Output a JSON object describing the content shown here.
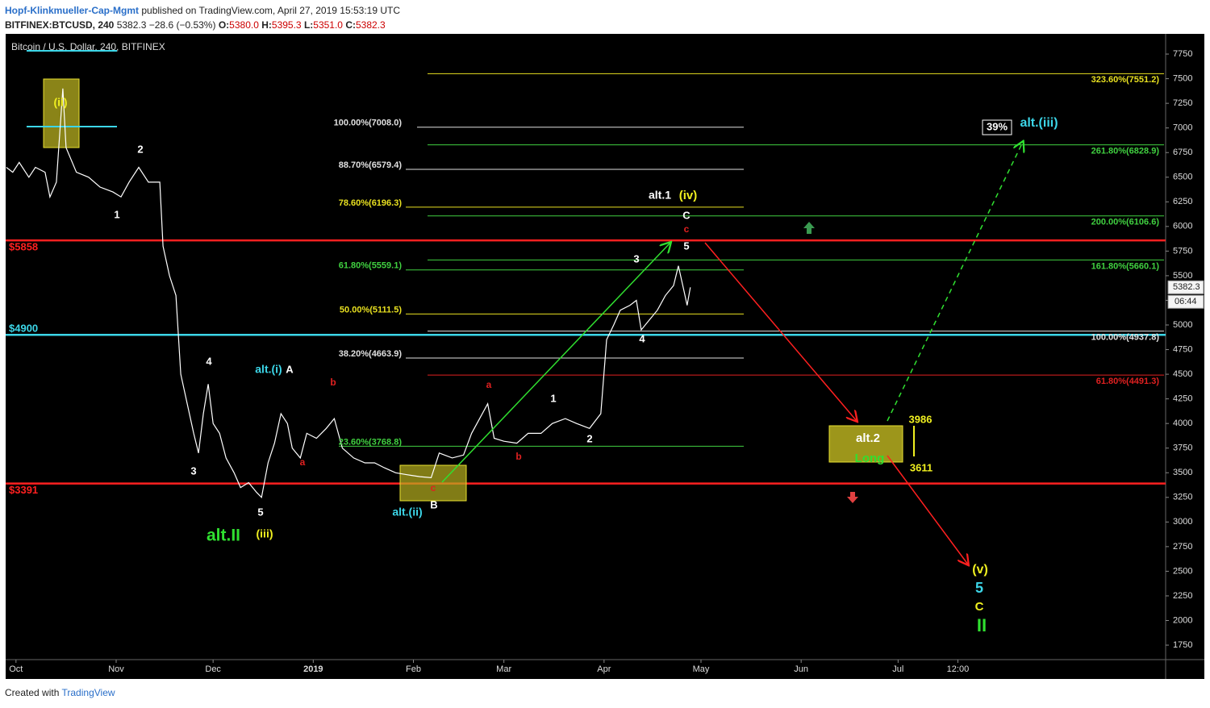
{
  "header": {
    "author": "Hopf-Klinkmueller-Cap-Mgmt",
    "published": "published on TradingView.com, April 27, 2019 15:53:19 UTC",
    "symbol": "BITFINEX:BTCUSD, 240",
    "last": "5382.3",
    "change": "−28.6 (−0.53%)",
    "o_label": "O:",
    "o": "5380.0",
    "h_label": "H:",
    "h": "5395.3",
    "l_label": "L:",
    "l": "5351.0",
    "c_label": "C:",
    "c": "5382.3"
  },
  "chart_data": {
    "type": "line",
    "title": "Bitcoin / U.S. Dollar, 240, BITFINEX",
    "series": [
      {
        "name": "BTCUSD",
        "color": "#ffffff",
        "x": [
          -3,
          -1,
          1,
          4,
          6,
          9,
          10.5,
          12.5,
          14.5,
          15.5,
          18.7,
          22.5,
          26,
          30,
          32.5,
          35,
          38,
          41,
          44.5,
          45.5,
          47.5,
          49.5,
          51,
          53,
          55,
          56.5,
          58,
          59.5,
          61,
          63,
          65,
          67.5,
          69.5,
          72,
          74.5,
          76,
          78,
          80,
          82,
          84,
          85.5,
          88,
          90,
          93,
          96,
          98.5,
          101,
          104.5,
          108,
          111,
          114,
          117.5,
          121,
          125,
          128.5,
          131,
          135,
          138.5,
          141,
          143.5,
          146,
          148,
          151,
          155,
          158.5,
          162.5,
          166,
          170,
          173.5,
          177.5,
          181,
          182.8,
          185,
          187,
          190,
          192,
          193.5,
          196,
          198.5,
          201,
          203.5,
          205,
          206.7,
          207.7,
          208.7
        ],
        "values": [
          6600,
          6550,
          6650,
          6500,
          6600,
          6550,
          6300,
          6450,
          7400,
          6800,
          6550,
          6500,
          6400,
          6350,
          6300,
          6450,
          6600,
          6450,
          6450,
          5800,
          5500,
          5300,
          4500,
          4200,
          3900,
          3700,
          4100,
          4400,
          4000,
          3900,
          3650,
          3500,
          3350,
          3400,
          3300,
          3250,
          3600,
          3800,
          4100,
          4000,
          3750,
          3650,
          3900,
          3850,
          3950,
          4050,
          3750,
          3650,
          3600,
          3600,
          3550,
          3500,
          3480,
          3460,
          3450,
          3700,
          3650,
          3680,
          3900,
          4050,
          4200,
          3850,
          3820,
          3800,
          3900,
          3900,
          4000,
          4050,
          4000,
          3950,
          4100,
          4850,
          5000,
          5150,
          5200,
          5250,
          4950,
          5050,
          5150,
          5300,
          5400,
          5600,
          5350,
          5200,
          5382.3
        ]
      }
    ],
    "ylim": [
      1603,
      7955
    ],
    "yticks": [
      7750,
      7500,
      7250,
      7000,
      6750,
      6500,
      6250,
      6000,
      5750,
      5500,
      5250,
      5000,
      4750,
      4500,
      4250,
      4000,
      3750,
      3500,
      3250,
      3000,
      2750,
      2500,
      2250,
      2000,
      1750
    ],
    "xlim": [
      -3.2,
      355.8
    ],
    "xticks": [
      {
        "value": 0,
        "label": "Oct"
      },
      {
        "value": 31,
        "label": "Nov"
      },
      {
        "value": 61,
        "label": "Dec"
      },
      {
        "value": 92,
        "label": "2019"
      },
      {
        "value": 123,
        "label": "Feb"
      },
      {
        "value": 151,
        "label": "Mar"
      },
      {
        "value": 182,
        "label": "Apr"
      },
      {
        "value": 212,
        "label": "May"
      },
      {
        "value": 243,
        "label": "Jun"
      },
      {
        "value": 273,
        "label": "Jul"
      },
      {
        "value": 291.5,
        "label": "12:00"
      }
    ],
    "last_price": {
      "value": 5382.3,
      "label": "5382.3"
    },
    "countdown": "06:44",
    "levels": [
      {
        "value": 5858,
        "label": "$5858",
        "color": "#ff2020"
      },
      {
        "value": 4900,
        "label": "$4900",
        "color": "#3cd6e8"
      },
      {
        "value": 3391,
        "label": "$3391",
        "color": "#ff2020"
      }
    ],
    "fib_left": [
      {
        "value": 7008.0,
        "label": "100.00%(7008.0)",
        "color": "#e0e0e0"
      },
      {
        "value": 6579.4,
        "label": "88.70%(6579.4)",
        "color": "#e0e0e0"
      },
      {
        "value": 6196.3,
        "label": "78.60%(6196.3)",
        "color": "#e8e020"
      },
      {
        "value": 5559.1,
        "label": "61.80%(5559.1)",
        "color": "#40d040"
      },
      {
        "value": 5111.5,
        "label": "50.00%(5111.5)",
        "color": "#e8e020"
      },
      {
        "value": 4663.9,
        "label": "38.20%(4663.9)",
        "color": "#e0e0e0"
      },
      {
        "value": 3768.8,
        "label": "23.60%(3768.8)",
        "color": "#40d040"
      }
    ],
    "fib_right": [
      {
        "value": 7551.2,
        "label": "323.60%(7551.2)",
        "color": "#e8e020"
      },
      {
        "value": 6828.9,
        "label": "261.80%(6828.9)",
        "color": "#40d040"
      },
      {
        "value": 6106.6,
        "label": "200.00%(6106.6)",
        "color": "#40d040"
      },
      {
        "value": 5660.1,
        "label": "161.80%(5660.1)",
        "color": "#40d040"
      },
      {
        "value": 4937.8,
        "label": "100.00%(4937.8)",
        "color": "#e0e0e0"
      },
      {
        "value": 4491.3,
        "label": "61.80%(4491.3)",
        "color": "#e02020"
      }
    ],
    "annotations": [
      {
        "text": "(ii)",
        "color": "#f0f020"
      },
      {
        "text": "2",
        "color": "#ffffff"
      },
      {
        "text": "1",
        "color": "#ffffff"
      },
      {
        "text": "4",
        "color": "#ffffff"
      },
      {
        "text": "3",
        "color": "#ffffff"
      },
      {
        "text": "5",
        "color": "#ffffff"
      },
      {
        "text": "alt.(i)",
        "color": "#3cd6e8"
      },
      {
        "text": "A",
        "color": "#ffffff"
      },
      {
        "text": "b",
        "color": "#e02020"
      },
      {
        "text": "a",
        "color": "#e02020"
      },
      {
        "text": "alt.II",
        "color": "#30e030"
      },
      {
        "text": "(iii)",
        "color": "#f0f020"
      },
      {
        "text": "alt.(ii)",
        "color": "#3cd6e8"
      },
      {
        "text": "B",
        "color": "#ffffff"
      },
      {
        "text": "c",
        "color": "#e02020"
      },
      {
        "text": "a",
        "color": "#e02020"
      },
      {
        "text": "b",
        "color": "#e02020"
      },
      {
        "text": "1",
        "color": "#ffffff"
      },
      {
        "text": "2",
        "color": "#ffffff"
      },
      {
        "text": "3",
        "color": "#ffffff"
      },
      {
        "text": "4",
        "color": "#ffffff"
      },
      {
        "text": "5",
        "color": "#ffffff"
      },
      {
        "text": "c",
        "color": "#e02020"
      },
      {
        "text": "C",
        "color": "#ffffff"
      },
      {
        "text": "alt.1",
        "color": "#ffffff"
      },
      {
        "text": "(iv)",
        "color": "#f0f020"
      },
      {
        "text": "39%",
        "color": "#ffffff"
      },
      {
        "text": "alt.(iii)",
        "color": "#3cd6e8"
      },
      {
        "text": "alt.2",
        "color": "#ffffff"
      },
      {
        "text": "Long",
        "color": "#30e030"
      },
      {
        "text": "3986",
        "color": "#f0f020"
      },
      {
        "text": "3611",
        "color": "#f0f020"
      },
      {
        "text": "(v)",
        "color": "#f0f020"
      },
      {
        "text": "5",
        "color": "#3cd6e8"
      },
      {
        "text": "C",
        "color": "#f0f020"
      },
      {
        "text": "II",
        "color": "#30e030"
      }
    ]
  },
  "footer": {
    "created": "Created with",
    "brand": "TradingView"
  }
}
